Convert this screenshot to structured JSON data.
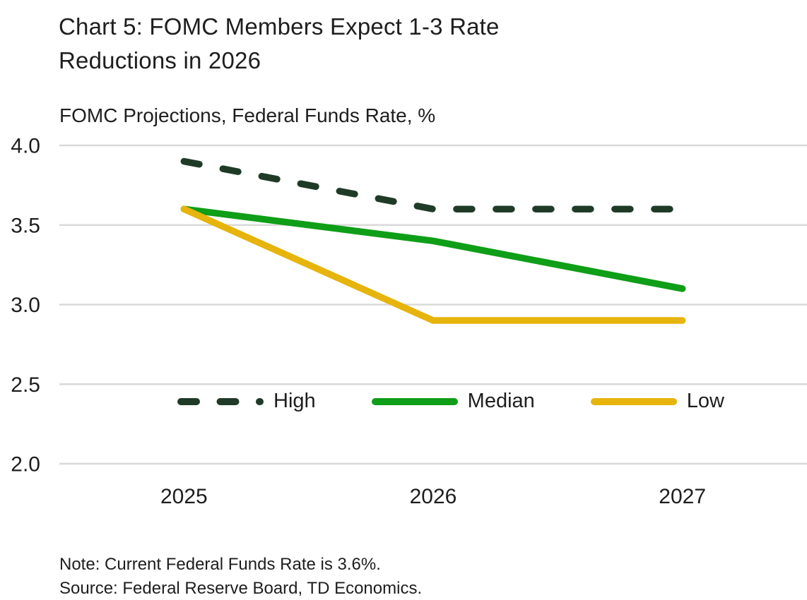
{
  "header": {
    "title_line1": "Chart 5: FOMC Members Expect 1-3 Rate",
    "title_line2": "Reductions in 2026",
    "subtitle": "FOMC Projections, Federal Funds Rate, %"
  },
  "chart_data": {
    "type": "line",
    "x": [
      "2025",
      "2026",
      "2027"
    ],
    "series": [
      {
        "name": "High",
        "values": [
          3.9,
          3.6,
          3.6
        ],
        "color": "#1f3b28",
        "style": "dashed"
      },
      {
        "name": "Median",
        "values": [
          3.6,
          3.4,
          3.1
        ],
        "color": "#0f9e17",
        "style": "solid"
      },
      {
        "name": "Low",
        "values": [
          3.6,
          2.9,
          2.9
        ],
        "color": "#e6b40c",
        "style": "solid"
      }
    ],
    "ylim": [
      2.0,
      4.0
    ],
    "yticks": [
      2.0,
      2.5,
      3.0,
      3.5,
      4.0
    ],
    "ytick_labels": [
      "2.0",
      "2.5",
      "3.0",
      "3.5",
      "4.0"
    ],
    "xlabel": "",
    "ylabel": "",
    "grid": true,
    "legend_position": "inside-bottom"
  },
  "footer": {
    "note": "Note: Current Federal Funds Rate is 3.6%.",
    "source": "Source: Federal Reserve Board, TD Economics."
  },
  "colors": {
    "grid": "#d9d9d9",
    "text": "#1e1e1e"
  }
}
